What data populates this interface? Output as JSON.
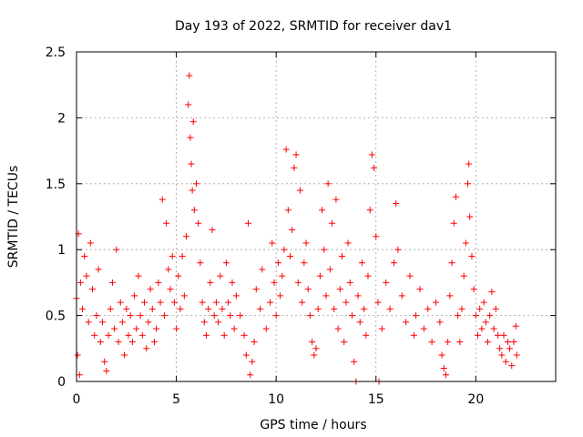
{
  "chart_data": {
    "type": "scatter",
    "title": "Day 193 of 2022, SRMTID for receiver dav1",
    "xlabel": "GPS time / hours",
    "ylabel": "SRMTID / TECUs",
    "xlim": [
      0,
      24
    ],
    "ylim": [
      0,
      2.5
    ],
    "xticks": [
      0,
      5,
      10,
      15,
      20
    ],
    "xtick_labels": [
      "0",
      "5",
      "10",
      "15",
      "20"
    ],
    "yticks": [
      0,
      0.5,
      1,
      1.5,
      2,
      2.5
    ],
    "ytick_labels": [
      "0",
      "0.5",
      "1",
      "1.5",
      "2",
      "2.5"
    ],
    "grid": true,
    "marker": "+",
    "series_color": "#ff0000",
    "series": [
      {
        "name": "SRMTID",
        "points": [
          [
            0.0,
            0.63
          ],
          [
            0.05,
            0.2
          ],
          [
            0.1,
            1.12
          ],
          [
            0.15,
            0.05
          ],
          [
            0.2,
            0.75
          ],
          [
            0.3,
            0.55
          ],
          [
            0.4,
            0.95
          ],
          [
            0.5,
            0.8
          ],
          [
            0.6,
            0.45
          ],
          [
            0.7,
            1.05
          ],
          [
            0.8,
            0.7
          ],
          [
            0.9,
            0.35
          ],
          [
            1.0,
            0.5
          ],
          [
            1.1,
            0.85
          ],
          [
            1.2,
            0.3
          ],
          [
            1.3,
            0.45
          ],
          [
            1.4,
            0.15
          ],
          [
            1.5,
            0.08
          ],
          [
            1.6,
            0.35
          ],
          [
            1.7,
            0.55
          ],
          [
            1.8,
            0.75
          ],
          [
            1.9,
            0.4
          ],
          [
            2.0,
            1.0
          ],
          [
            2.1,
            0.3
          ],
          [
            2.2,
            0.6
          ],
          [
            2.3,
            0.45
          ],
          [
            2.4,
            0.2
          ],
          [
            2.5,
            0.55
          ],
          [
            2.6,
            0.35
          ],
          [
            2.7,
            0.5
          ],
          [
            2.8,
            0.3
          ],
          [
            2.9,
            0.65
          ],
          [
            3.0,
            0.4
          ],
          [
            3.1,
            0.8
          ],
          [
            3.2,
            0.5
          ],
          [
            3.3,
            0.35
          ],
          [
            3.4,
            0.6
          ],
          [
            3.5,
            0.25
          ],
          [
            3.6,
            0.45
          ],
          [
            3.7,
            0.7
          ],
          [
            3.8,
            0.55
          ],
          [
            3.9,
            0.3
          ],
          [
            4.0,
            0.4
          ],
          [
            4.1,
            0.75
          ],
          [
            4.2,
            0.6
          ],
          [
            4.3,
            1.38
          ],
          [
            4.4,
            0.5
          ],
          [
            4.5,
            1.2
          ],
          [
            4.6,
            0.85
          ],
          [
            4.7,
            0.7
          ],
          [
            4.8,
            0.95
          ],
          [
            4.9,
            0.6
          ],
          [
            5.0,
            0.4
          ],
          [
            5.1,
            0.8
          ],
          [
            5.2,
            0.55
          ],
          [
            5.3,
            0.95
          ],
          [
            5.4,
            0.65
          ],
          [
            5.5,
            1.1
          ],
          [
            5.6,
            2.1
          ],
          [
            5.65,
            2.32
          ],
          [
            5.7,
            1.85
          ],
          [
            5.75,
            1.65
          ],
          [
            5.8,
            1.45
          ],
          [
            5.85,
            1.97
          ],
          [
            5.9,
            1.3
          ],
          [
            6.0,
            1.5
          ],
          [
            6.1,
            1.2
          ],
          [
            6.2,
            0.9
          ],
          [
            6.3,
            0.6
          ],
          [
            6.4,
            0.45
          ],
          [
            6.5,
            0.35
          ],
          [
            6.6,
            0.55
          ],
          [
            6.7,
            0.75
          ],
          [
            6.8,
            1.15
          ],
          [
            6.9,
            0.5
          ],
          [
            7.0,
            0.6
          ],
          [
            7.1,
            0.45
          ],
          [
            7.2,
            0.8
          ],
          [
            7.3,
            0.55
          ],
          [
            7.4,
            0.35
          ],
          [
            7.5,
            0.9
          ],
          [
            7.6,
            0.6
          ],
          [
            7.7,
            0.5
          ],
          [
            7.8,
            0.75
          ],
          [
            7.9,
            0.4
          ],
          [
            8.0,
            0.65
          ],
          [
            8.2,
            0.5
          ],
          [
            8.4,
            0.35
          ],
          [
            8.5,
            0.2
          ],
          [
            8.6,
            1.2
          ],
          [
            8.7,
            0.05
          ],
          [
            8.8,
            0.15
          ],
          [
            8.9,
            0.3
          ],
          [
            9.0,
            0.7
          ],
          [
            9.2,
            0.55
          ],
          [
            9.3,
            0.85
          ],
          [
            9.5,
            0.4
          ],
          [
            9.7,
            0.6
          ],
          [
            9.8,
            1.05
          ],
          [
            9.9,
            0.75
          ],
          [
            10.0,
            0.5
          ],
          [
            10.1,
            0.9
          ],
          [
            10.2,
            0.65
          ],
          [
            10.3,
            0.8
          ],
          [
            10.4,
            1.0
          ],
          [
            10.5,
            1.76
          ],
          [
            10.6,
            1.3
          ],
          [
            10.7,
            0.95
          ],
          [
            10.8,
            1.15
          ],
          [
            10.9,
            1.62
          ],
          [
            11.0,
            1.72
          ],
          [
            11.1,
            0.75
          ],
          [
            11.2,
            1.45
          ],
          [
            11.3,
            0.6
          ],
          [
            11.4,
            0.9
          ],
          [
            11.5,
            1.05
          ],
          [
            11.6,
            0.7
          ],
          [
            11.7,
            0.5
          ],
          [
            11.8,
            0.3
          ],
          [
            11.9,
            0.2
          ],
          [
            12.0,
            0.25
          ],
          [
            12.1,
            0.55
          ],
          [
            12.2,
            0.8
          ],
          [
            12.3,
            1.3
          ],
          [
            12.4,
            1.0
          ],
          [
            12.5,
            0.65
          ],
          [
            12.6,
            1.5
          ],
          [
            12.7,
            0.85
          ],
          [
            12.8,
            1.2
          ],
          [
            12.9,
            0.55
          ],
          [
            13.0,
            1.38
          ],
          [
            13.1,
            0.4
          ],
          [
            13.2,
            0.7
          ],
          [
            13.3,
            0.95
          ],
          [
            13.4,
            0.3
          ],
          [
            13.5,
            0.6
          ],
          [
            13.6,
            1.05
          ],
          [
            13.7,
            0.75
          ],
          [
            13.8,
            0.5
          ],
          [
            13.9,
            0.15
          ],
          [
            14.0,
            0.0
          ],
          [
            14.1,
            0.65
          ],
          [
            14.2,
            0.45
          ],
          [
            14.3,
            0.9
          ],
          [
            14.4,
            0.55
          ],
          [
            14.5,
            0.35
          ],
          [
            14.6,
            0.8
          ],
          [
            14.7,
            1.3
          ],
          [
            14.8,
            1.72
          ],
          [
            14.9,
            1.62
          ],
          [
            15.0,
            1.1
          ],
          [
            15.1,
            0.6
          ],
          [
            15.15,
            0.0
          ],
          [
            15.3,
            0.4
          ],
          [
            15.5,
            0.75
          ],
          [
            15.7,
            0.55
          ],
          [
            15.9,
            0.9
          ],
          [
            16.0,
            1.35
          ],
          [
            16.1,
            1.0
          ],
          [
            16.3,
            0.65
          ],
          [
            16.5,
            0.45
          ],
          [
            16.7,
            0.8
          ],
          [
            16.9,
            0.35
          ],
          [
            17.0,
            0.5
          ],
          [
            17.2,
            0.7
          ],
          [
            17.4,
            0.4
          ],
          [
            17.6,
            0.55
          ],
          [
            17.8,
            0.3
          ],
          [
            18.0,
            0.6
          ],
          [
            18.2,
            0.45
          ],
          [
            18.3,
            0.2
          ],
          [
            18.4,
            0.1
          ],
          [
            18.5,
            0.05
          ],
          [
            18.6,
            0.3
          ],
          [
            18.7,
            0.65
          ],
          [
            18.8,
            0.9
          ],
          [
            18.9,
            1.2
          ],
          [
            19.0,
            1.4
          ],
          [
            19.1,
            0.5
          ],
          [
            19.2,
            0.3
          ],
          [
            19.3,
            0.55
          ],
          [
            19.4,
            0.8
          ],
          [
            19.5,
            1.05
          ],
          [
            19.6,
            1.5
          ],
          [
            19.65,
            1.65
          ],
          [
            19.7,
            1.25
          ],
          [
            19.8,
            0.95
          ],
          [
            19.9,
            0.7
          ],
          [
            20.0,
            0.5
          ],
          [
            20.1,
            0.35
          ],
          [
            20.2,
            0.55
          ],
          [
            20.3,
            0.4
          ],
          [
            20.4,
            0.6
          ],
          [
            20.5,
            0.45
          ],
          [
            20.6,
            0.3
          ],
          [
            20.7,
            0.5
          ],
          [
            20.8,
            0.68
          ],
          [
            20.9,
            0.4
          ],
          [
            21.0,
            0.55
          ],
          [
            21.1,
            0.35
          ],
          [
            21.2,
            0.25
          ],
          [
            21.3,
            0.2
          ],
          [
            21.4,
            0.35
          ],
          [
            21.5,
            0.15
          ],
          [
            21.6,
            0.3
          ],
          [
            21.7,
            0.25
          ],
          [
            21.8,
            0.12
          ],
          [
            21.9,
            0.3
          ],
          [
            22.0,
            0.42
          ],
          [
            22.05,
            0.2
          ]
        ]
      }
    ]
  }
}
